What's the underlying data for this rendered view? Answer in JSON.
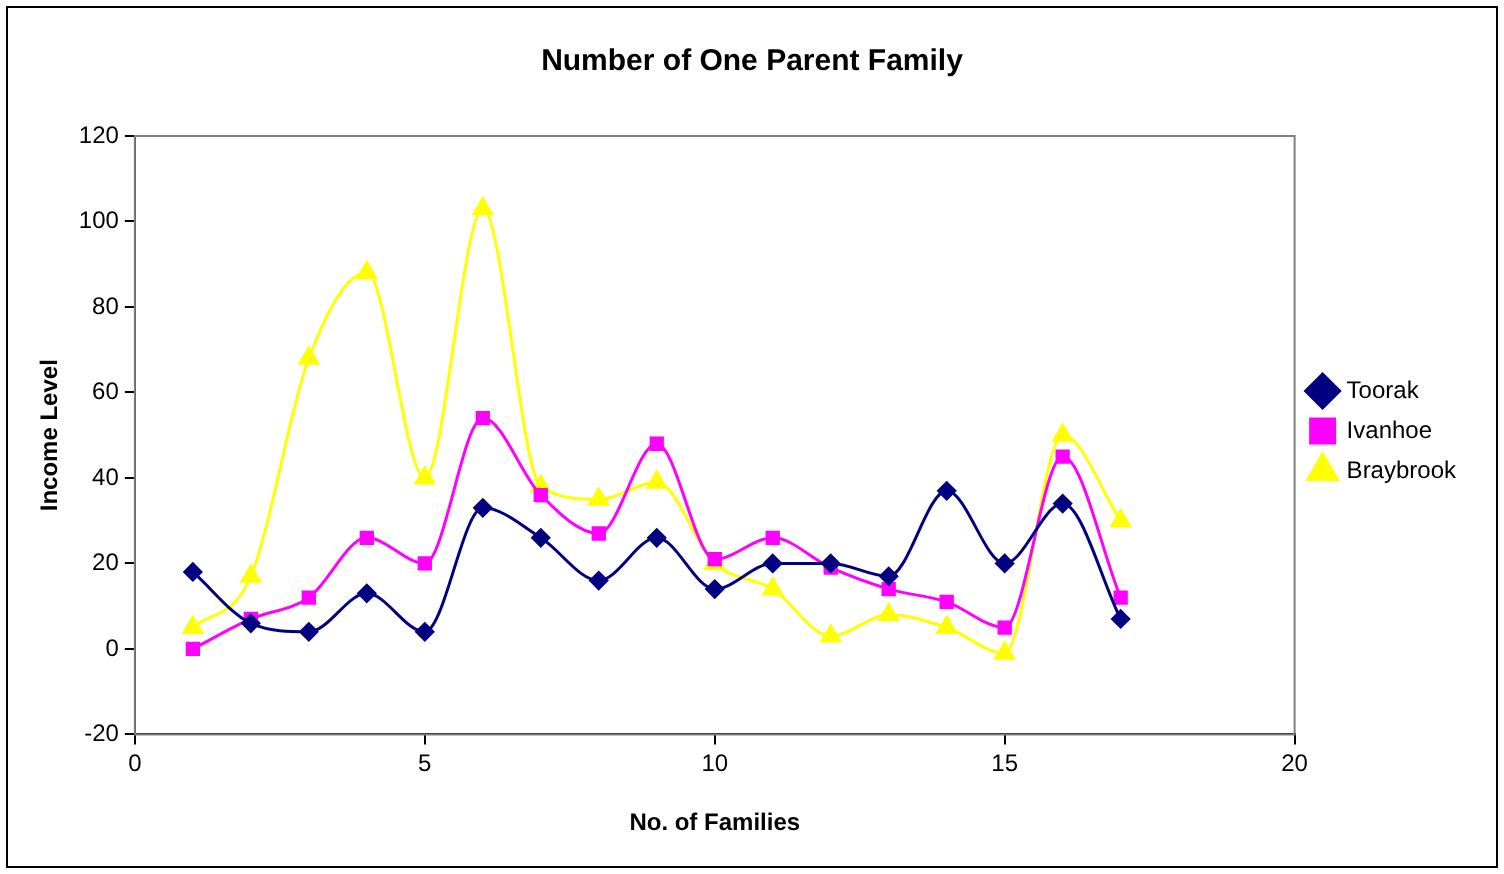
{
  "chart_data": {
    "type": "line",
    "title": "Number of One Parent Family",
    "xlabel": "No. of Families",
    "ylabel": "Income Level",
    "x": [
      1,
      2,
      3,
      4,
      5,
      6,
      7,
      8,
      9,
      10,
      11,
      12,
      13,
      14,
      15,
      16,
      17
    ],
    "xlim": [
      0,
      20
    ],
    "xticks": [
      0,
      5,
      10,
      15,
      20
    ],
    "ylim": [
      -20,
      120
    ],
    "yticks": [
      -20,
      0,
      20,
      40,
      60,
      80,
      100,
      120
    ],
    "grid": false,
    "legend": "right",
    "series": [
      {
        "name": "Toorak",
        "color": "#000080",
        "marker": "diamond",
        "values": [
          18,
          6,
          4,
          13,
          4,
          33,
          26,
          16,
          26,
          14,
          20,
          20,
          17,
          37,
          20,
          34,
          7
        ]
      },
      {
        "name": "Ivanhoe",
        "color": "#ff00ff",
        "marker": "square",
        "values": [
          0,
          7,
          12,
          26,
          20,
          54,
          36,
          27,
          48,
          21,
          26,
          19,
          14,
          11,
          5,
          45,
          12
        ]
      },
      {
        "name": "Braybrook",
        "color": "#ffff00",
        "marker": "triangle",
        "values": [
          5,
          17,
          68,
          88,
          40,
          103,
          38,
          35,
          39,
          20,
          14,
          3,
          8,
          5,
          -1,
          50,
          30
        ]
      }
    ]
  }
}
